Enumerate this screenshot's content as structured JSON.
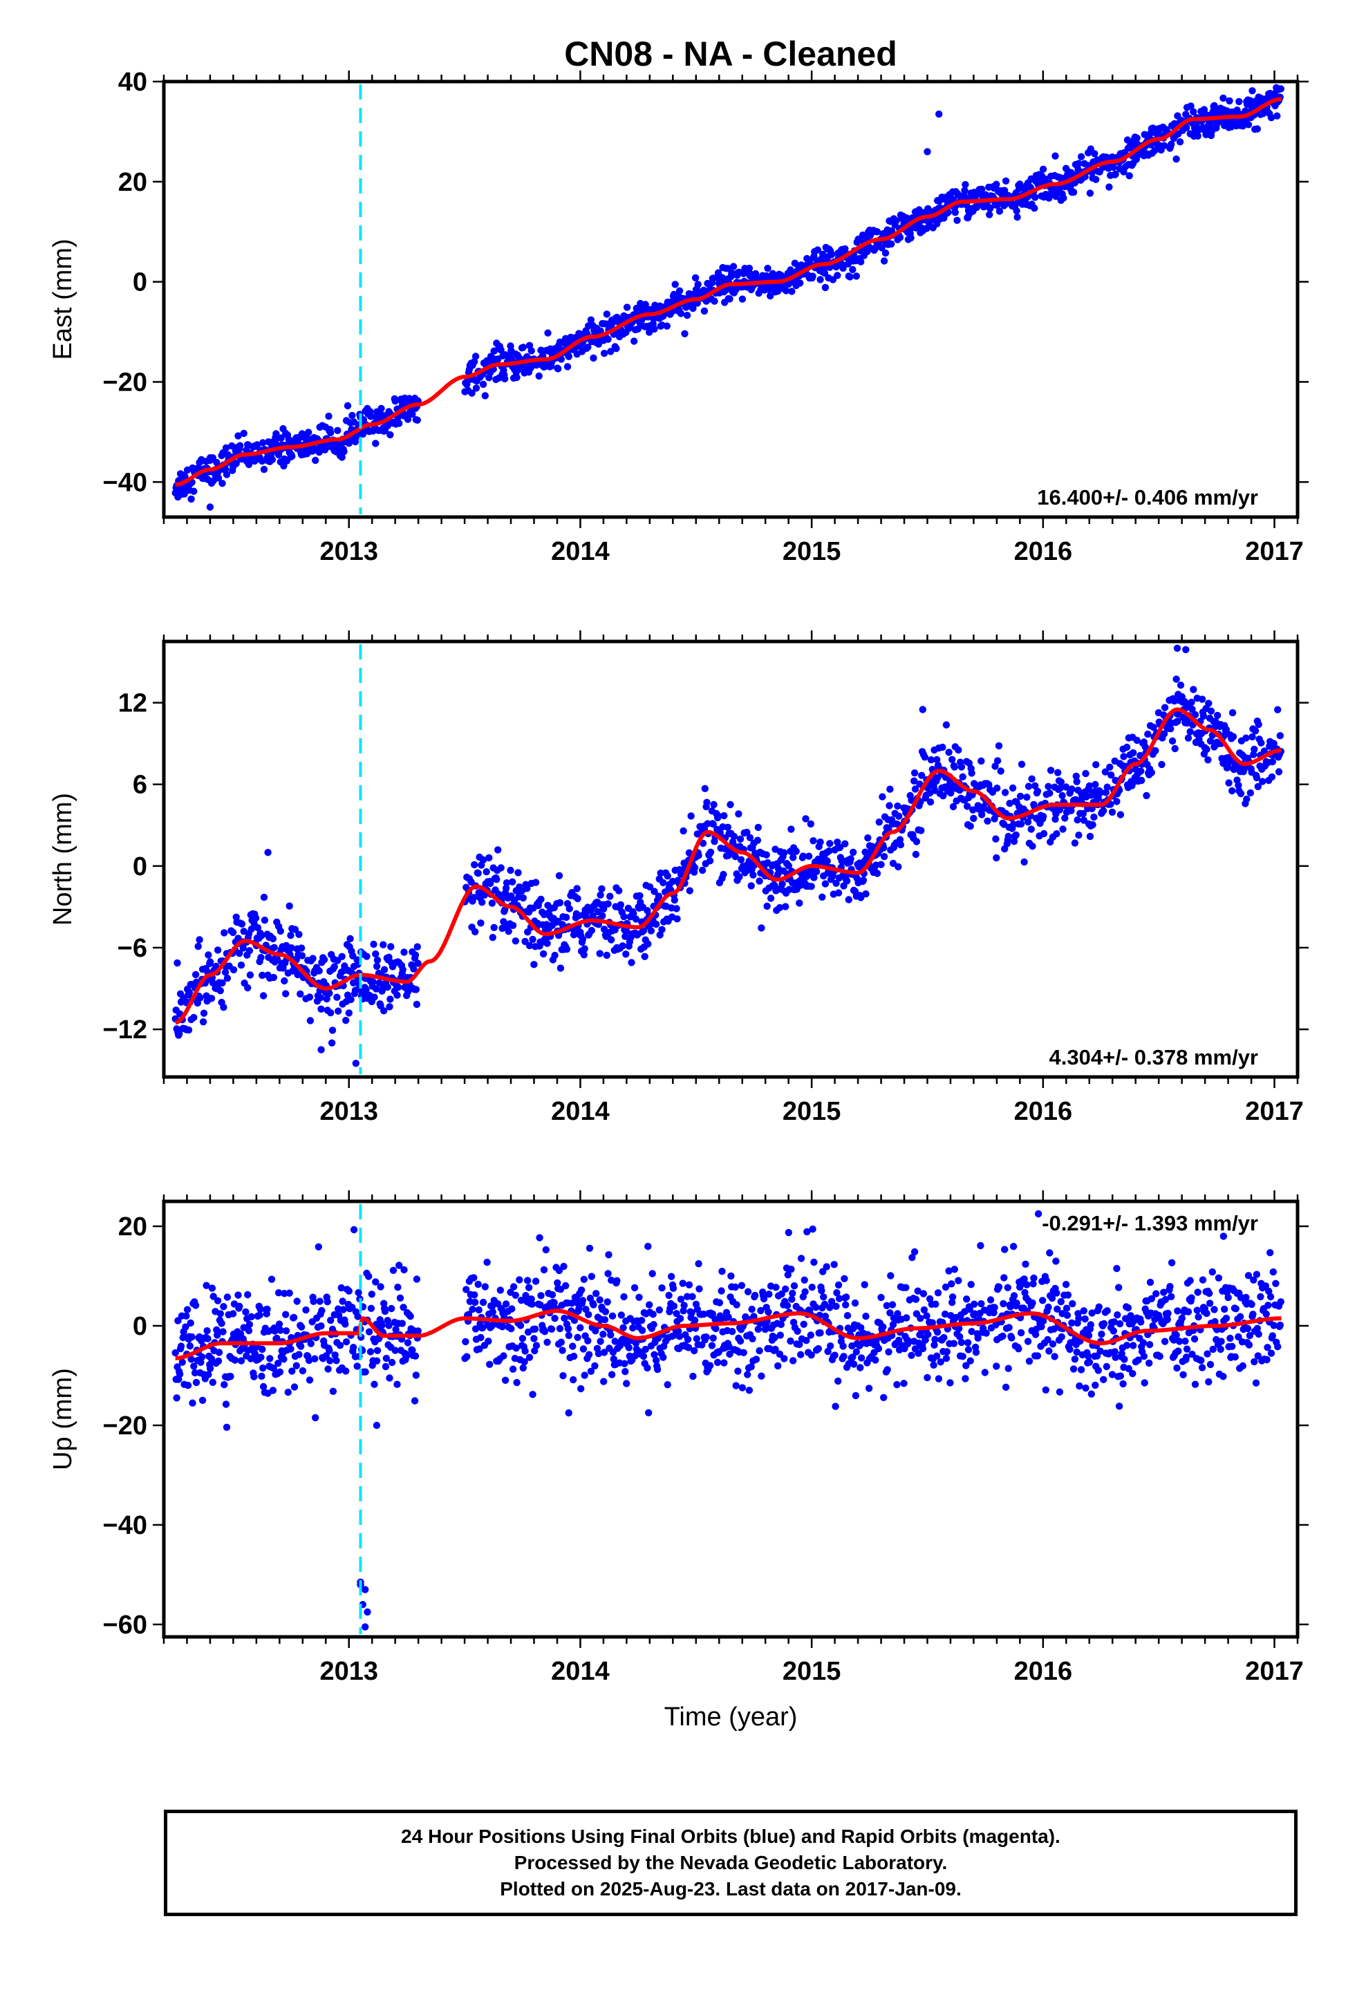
{
  "title": "CN08  - NA - Cleaned",
  "footer": {
    "line1": "24 Hour Positions Using Final Orbits (blue) and Rapid Orbits (magenta).",
    "line2": "Processed by the Nevada Geodetic Laboratory.",
    "line3": "Plotted on 2025-Aug-23. Last data on 2017-Jan-09."
  },
  "colors": {
    "points": "#0000ff",
    "trend": "#ff0000",
    "event_line": "#00e5ff",
    "frame": "#000000"
  },
  "chart_data": [
    {
      "type": "scatter",
      "component": "east",
      "ylabel": "East (mm)",
      "xlabel": "",
      "xlim": [
        2012.2,
        2017.1
      ],
      "ylim": [
        -47,
        40
      ],
      "xticks": [
        2013,
        2014,
        2015,
        2016,
        2017
      ],
      "yticks": [
        -40,
        -20,
        0,
        20,
        40
      ],
      "rate_label": "16.400+/- 0.406 mm/yr",
      "event_line_x": 2013.05,
      "data_gap": [
        2013.3,
        2013.5
      ],
      "start_x": 2012.25,
      "end_x": 2017.03,
      "scatter_sd": 1.6,
      "trend_knots": [
        [
          2012.25,
          -40.5
        ],
        [
          2012.4,
          -37.5
        ],
        [
          2012.55,
          -34.5
        ],
        [
          2012.75,
          -33
        ],
        [
          2012.95,
          -31.5
        ],
        [
          2013.1,
          -28.5
        ],
        [
          2013.3,
          -24.5
        ],
        [
          2013.5,
          -19
        ],
        [
          2013.65,
          -16.5
        ],
        [
          2013.85,
          -15.5
        ],
        [
          2014.05,
          -11
        ],
        [
          2014.3,
          -6.5
        ],
        [
          2014.5,
          -3.5
        ],
        [
          2014.65,
          -0.5
        ],
        [
          2014.85,
          0
        ],
        [
          2015.05,
          3.5
        ],
        [
          2015.3,
          8.5
        ],
        [
          2015.5,
          13
        ],
        [
          2015.65,
          16
        ],
        [
          2015.85,
          16.5
        ],
        [
          2016.05,
          19.5
        ],
        [
          2016.3,
          24
        ],
        [
          2016.5,
          28.5
        ],
        [
          2016.65,
          32.5
        ],
        [
          2016.85,
          33
        ],
        [
          2017.03,
          36.5
        ]
      ],
      "outliers": [
        [
          2015.55,
          33.5
        ],
        [
          2015.5,
          26
        ],
        [
          2012.4,
          -45
        ]
      ]
    },
    {
      "type": "scatter",
      "component": "north",
      "ylabel": "North (mm)",
      "xlabel": "",
      "xlim": [
        2012.2,
        2017.1
      ],
      "ylim": [
        -15.5,
        16.5
      ],
      "xticks": [
        2013,
        2014,
        2015,
        2016,
        2017
      ],
      "yticks": [
        -12,
        -6,
        0,
        6,
        12
      ],
      "rate_label": "4.304+/- 0.378 mm/yr",
      "event_line_x": 2013.05,
      "data_gap": [
        2013.3,
        2013.5
      ],
      "start_x": 2012.25,
      "end_x": 2017.03,
      "scatter_sd": 1.3,
      "trend_knots": [
        [
          2012.25,
          -11.5
        ],
        [
          2012.4,
          -8
        ],
        [
          2012.55,
          -5.5
        ],
        [
          2012.7,
          -6.5
        ],
        [
          2012.9,
          -9
        ],
        [
          2013.05,
          -8
        ],
        [
          2013.25,
          -8.5
        ],
        [
          2013.35,
          -7
        ],
        [
          2013.55,
          -1.5
        ],
        [
          2013.7,
          -3
        ],
        [
          2013.85,
          -5
        ],
        [
          2014.05,
          -4
        ],
        [
          2014.25,
          -4.5
        ],
        [
          2014.4,
          -2
        ],
        [
          2014.55,
          2.5
        ],
        [
          2014.7,
          1
        ],
        [
          2014.85,
          -1
        ],
        [
          2015.0,
          0
        ],
        [
          2015.2,
          -0.5
        ],
        [
          2015.35,
          2.5
        ],
        [
          2015.55,
          7
        ],
        [
          2015.7,
          5.5
        ],
        [
          2015.85,
          3.5
        ],
        [
          2016.05,
          4.5
        ],
        [
          2016.25,
          4.5
        ],
        [
          2016.4,
          7.5
        ],
        [
          2016.58,
          11.5
        ],
        [
          2016.72,
          10
        ],
        [
          2016.87,
          7.5
        ],
        [
          2017.03,
          8.5
        ]
      ],
      "outliers": [
        [
          2012.88,
          -13.5
        ],
        [
          2013.03,
          -14.5
        ],
        [
          2012.65,
          1
        ],
        [
          2015.48,
          11.5
        ],
        [
          2016.58,
          16
        ]
      ]
    },
    {
      "type": "scatter",
      "component": "up",
      "ylabel": "Up (mm)",
      "xlabel": "Time (year)",
      "xlim": [
        2012.2,
        2017.1
      ],
      "ylim": [
        -62.5,
        25
      ],
      "xticks": [
        2013,
        2014,
        2015,
        2016,
        2017
      ],
      "yticks": [
        -60,
        -40,
        -20,
        0,
        20
      ],
      "rate_label": "-0.291+/- 1.393 mm/yr",
      "event_line_x": 2013.05,
      "data_gap": [
        2013.3,
        2013.5
      ],
      "start_x": 2012.25,
      "end_x": 2017.03,
      "scatter_sd": 5.5,
      "trend_knots": [
        [
          2012.25,
          -6.5
        ],
        [
          2012.45,
          -3.5
        ],
        [
          2012.7,
          -3.5
        ],
        [
          2012.9,
          -1.5
        ],
        [
          2013.04,
          -1.5
        ],
        [
          2013.06,
          1.5
        ],
        [
          2013.15,
          -2
        ],
        [
          2013.3,
          -2
        ],
        [
          2013.5,
          1.5
        ],
        [
          2013.7,
          1
        ],
        [
          2013.9,
          3
        ],
        [
          2014.1,
          0
        ],
        [
          2014.25,
          -2.5
        ],
        [
          2014.45,
          0
        ],
        [
          2014.65,
          0.5
        ],
        [
          2014.95,
          2.5
        ],
        [
          2015.2,
          -2.5
        ],
        [
          2015.45,
          -0.5
        ],
        [
          2015.7,
          0.5
        ],
        [
          2015.95,
          2.5
        ],
        [
          2016.25,
          -3.5
        ],
        [
          2016.45,
          -1
        ],
        [
          2016.75,
          0
        ],
        [
          2017.03,
          1.5
        ]
      ],
      "outliers": [
        [
          2013.05,
          -51.5
        ],
        [
          2013.07,
          -53
        ],
        [
          2013.06,
          -56
        ],
        [
          2013.08,
          -57.5
        ],
        [
          2013.07,
          -60.5
        ],
        [
          2013.05,
          -52
        ],
        [
          2015.98,
          22.5
        ],
        [
          2016.78,
          18
        ],
        [
          2013.95,
          -17.5
        ],
        [
          2013.12,
          -20
        ]
      ]
    }
  ]
}
